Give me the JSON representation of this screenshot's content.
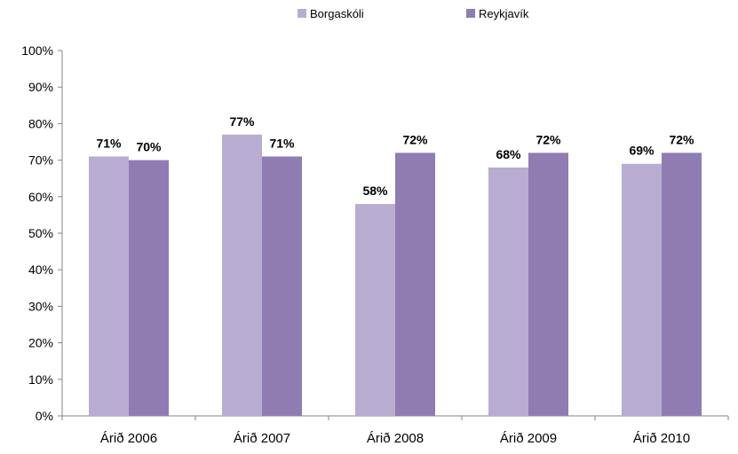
{
  "chart_data": {
    "type": "bar",
    "title": "",
    "xlabel": "",
    "ylabel": "",
    "ylim": [
      0,
      100
    ],
    "y_step": 10,
    "y_tick_suffix": "%",
    "grid": false,
    "legend_position": "top-center",
    "categories": [
      "Árið 2006",
      "Árið 2007",
      "Árið 2008",
      "Árið 2009",
      "Árið 2010"
    ],
    "series": [
      {
        "name": "Borgaskóli",
        "color": "#b9acd1",
        "values": [
          71,
          77,
          58,
          68,
          69
        ],
        "labels": [
          "71%",
          "77%",
          "58%",
          "68%",
          "69%"
        ]
      },
      {
        "name": "Reykjavík",
        "color": "#8e7cb2",
        "values": [
          70,
          71,
          72,
          72,
          72
        ],
        "labels": [
          "70%",
          "71%",
          "72%",
          "72%",
          "72%"
        ]
      }
    ]
  }
}
